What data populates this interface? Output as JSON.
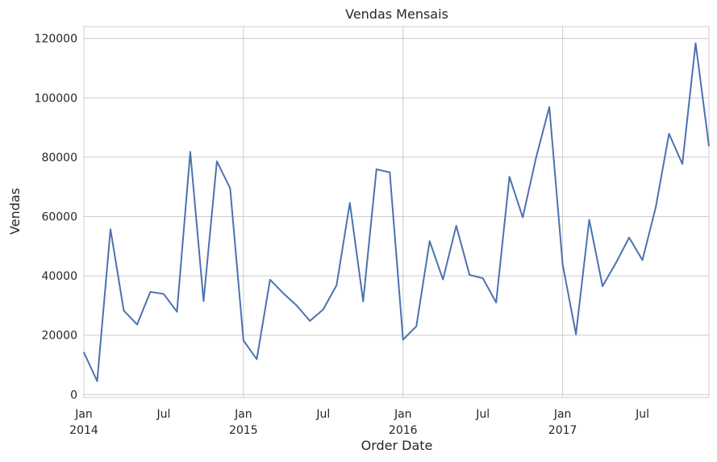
{
  "chart_data": {
    "type": "line",
    "title": "Vendas Mensais",
    "xlabel": "Order Date",
    "ylabel": "Vendas",
    "ylim": [
      -1000,
      124000
    ],
    "grid": true,
    "y_ticks": [
      "0",
      "20000",
      "40000",
      "60000",
      "80000",
      "100000",
      "120000"
    ],
    "x_ticks": [
      {
        "label": "Jan",
        "sub": "2014"
      },
      {
        "label": "Jul",
        "sub": ""
      },
      {
        "label": "Jan",
        "sub": "2015"
      },
      {
        "label": "Jul",
        "sub": ""
      },
      {
        "label": "Jan",
        "sub": "2016"
      },
      {
        "label": "Jul",
        "sub": ""
      },
      {
        "label": "Jan",
        "sub": "2017"
      },
      {
        "label": "Jul",
        "sub": ""
      }
    ],
    "x": [
      "2014-01",
      "2014-02",
      "2014-03",
      "2014-04",
      "2014-05",
      "2014-06",
      "2014-07",
      "2014-08",
      "2014-09",
      "2014-10",
      "2014-11",
      "2014-12",
      "2015-01",
      "2015-02",
      "2015-03",
      "2015-04",
      "2015-05",
      "2015-06",
      "2015-07",
      "2015-08",
      "2015-09",
      "2015-10",
      "2015-11",
      "2015-12",
      "2016-01",
      "2016-02",
      "2016-03",
      "2016-04",
      "2016-05",
      "2016-06",
      "2016-07",
      "2016-08",
      "2016-09",
      "2016-10",
      "2016-11",
      "2016-12",
      "2017-01",
      "2017-02",
      "2017-03",
      "2017-04",
      "2017-05",
      "2017-06",
      "2017-07",
      "2017-08",
      "2017-09",
      "2017-10",
      "2017-11",
      "2017-12"
    ],
    "series": [
      {
        "color": "#4c72b0",
        "values": [
          14200,
          4500,
          55700,
          28300,
          23600,
          34600,
          33900,
          27900,
          81800,
          31500,
          78600,
          69500,
          18200,
          11900,
          38700,
          34100,
          30000,
          24800,
          28700,
          36800,
          64600,
          31400,
          75900,
          74900,
          18500,
          23000,
          51700,
          38800,
          56900,
          40300,
          39200,
          31000,
          73400,
          59700,
          79800,
          96900,
          43900,
          20300,
          58900,
          36500,
          44300,
          52900,
          45300,
          63100,
          87900,
          77700,
          118400,
          83800
        ]
      }
    ]
  }
}
